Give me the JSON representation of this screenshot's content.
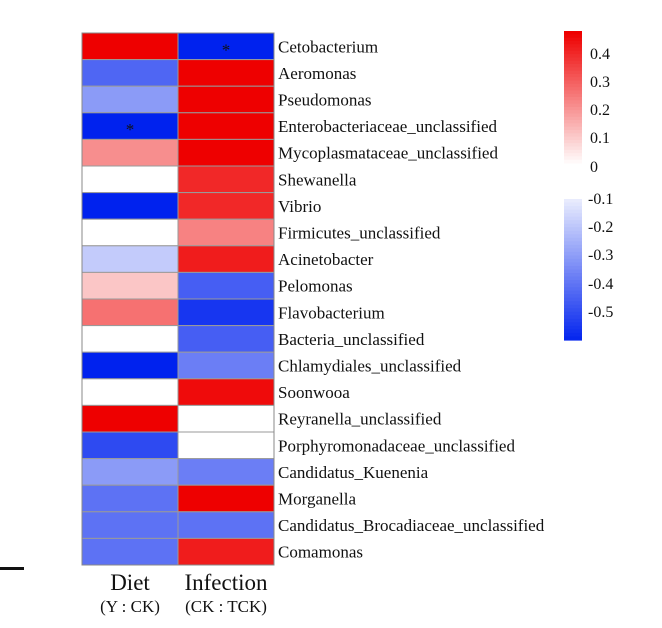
{
  "chart_data": {
    "type": "heatmap",
    "columns": [
      {
        "label": "Diet",
        "sublabel": "(Y : CK)"
      },
      {
        "label": "Infection",
        "sublabel": "(CK : TCK)"
      }
    ],
    "rows": [
      "Cetobacterium",
      "Aeromonas",
      "Pseudomonas",
      "Enterobacteriaceae_unclassified",
      "Mycoplasmataceae_unclassified",
      "Shewanella",
      "Vibrio",
      "Firmicutes_unclassified",
      "Acinetobacter",
      "Pelomonas",
      "Flavobacterium",
      "Bacteria_unclassified",
      "Chlamydiales_unclassified",
      "Soonwooa",
      "Reyranella_unclassified",
      "Porphyromonadaceae_unclassified",
      "Candidatus_Kuenenia",
      "Morganella",
      "Candidatus_Brocadiaceae_unclassified",
      "Comamonas"
    ],
    "values": [
      [
        0.45,
        -0.55
      ],
      [
        -0.38,
        0.45
      ],
      [
        -0.25,
        0.45
      ],
      [
        -0.55,
        0.45
      ],
      [
        0.2,
        0.45
      ],
      [
        0.0,
        0.38
      ],
      [
        -0.55,
        0.38
      ],
      [
        0.0,
        0.22
      ],
      [
        -0.13,
        0.4
      ],
      [
        0.1,
        -0.4
      ],
      [
        0.25,
        -0.5
      ],
      [
        0.0,
        -0.4
      ],
      [
        -0.55,
        -0.32
      ],
      [
        0.0,
        0.43
      ],
      [
        0.45,
        0.0
      ],
      [
        -0.45,
        0.0
      ],
      [
        -0.25,
        -0.32
      ],
      [
        -0.35,
        0.45
      ],
      [
        -0.35,
        -0.35
      ],
      [
        -0.35,
        0.4
      ]
    ],
    "significance": [
      [
        false,
        true
      ],
      [
        false,
        false
      ],
      [
        false,
        false
      ],
      [
        true,
        false
      ],
      [
        false,
        false
      ],
      [
        false,
        false
      ],
      [
        false,
        false
      ],
      [
        false,
        false
      ],
      [
        false,
        false
      ],
      [
        false,
        false
      ],
      [
        false,
        false
      ],
      [
        false,
        false
      ],
      [
        false,
        false
      ],
      [
        false,
        false
      ],
      [
        false,
        false
      ],
      [
        false,
        false
      ],
      [
        false,
        false
      ],
      [
        false,
        false
      ],
      [
        false,
        false
      ],
      [
        false,
        false
      ]
    ],
    "significance_marker": "*",
    "colorbar": {
      "positive_ticks": [
        "0.4",
        "0.3",
        "0.2",
        "0.1",
        "0"
      ],
      "negative_ticks": [
        "-0.1",
        "-0.2",
        "-0.3",
        "-0.4",
        "-0.5"
      ],
      "min": -0.55,
      "max": 0.45,
      "low_color": "#0022ee",
      "mid_color": "#ffffff",
      "high_color": "#ee0000"
    },
    "legend_position": "right"
  }
}
